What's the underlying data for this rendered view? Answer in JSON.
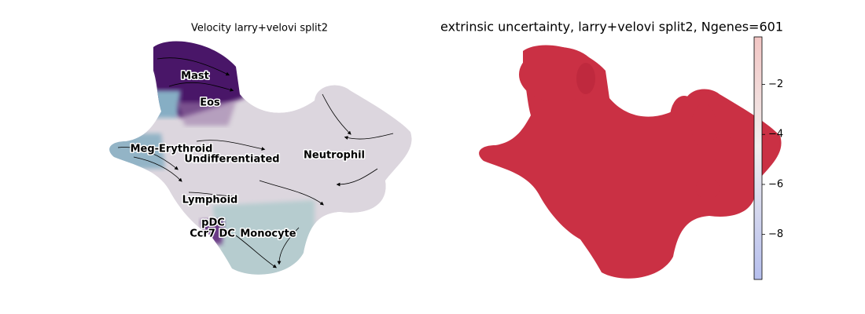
{
  "chart_data": [
    {
      "type": "embedding",
      "title": "Velocity larry+velovi split2",
      "labels": [
        "Mast",
        "Eos",
        "Meg-Erythroid",
        "Undifferentiated",
        "Neutrophil",
        "Lymphoid",
        "pDC",
        "Ccr7 DC",
        "Monocyte"
      ]
    },
    {
      "type": "colorbar-embedding",
      "title": "extrinsic uncertainty, larry+velovi split2, Ngenes=601",
      "clim": [
        -9.8,
        -0.1
      ],
      "cmap": "coolwarm",
      "cticks": [
        {
          "value": -2,
          "label": "−2"
        },
        {
          "value": -4,
          "label": "−4"
        },
        {
          "value": -6,
          "label": "−6"
        },
        {
          "value": -8,
          "label": "−8"
        }
      ]
    }
  ]
}
